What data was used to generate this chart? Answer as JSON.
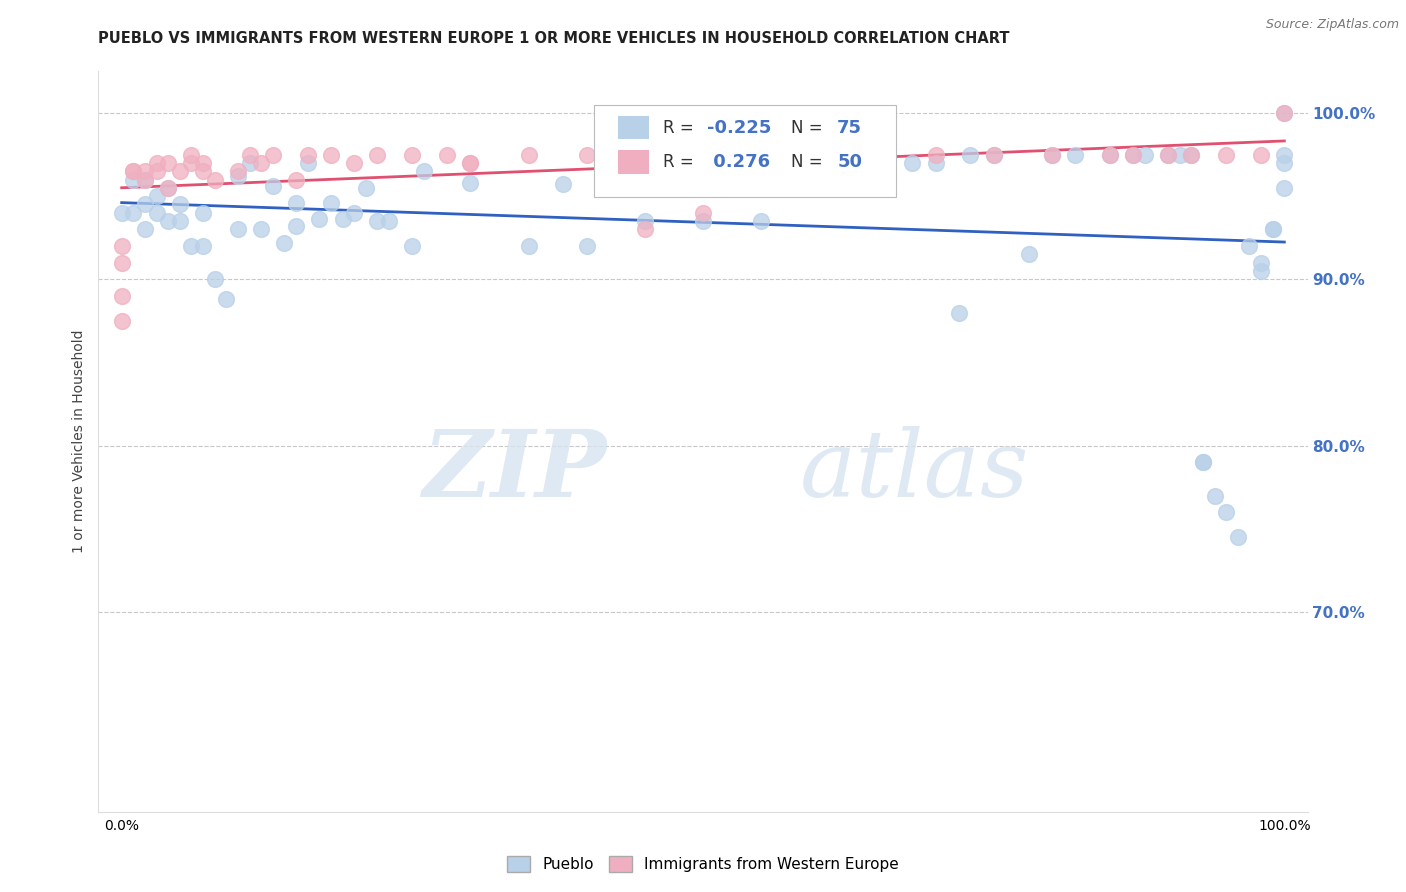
{
  "title": "PUEBLO VS IMMIGRANTS FROM WESTERN EUROPE 1 OR MORE VEHICLES IN HOUSEHOLD CORRELATION CHART",
  "source": "Source: ZipAtlas.com",
  "ylabel": "1 or more Vehicles in Household",
  "xlim": [
    -0.02,
    1.02
  ],
  "ylim": [
    0.58,
    1.025
  ],
  "ytick_vals": [
    0.7,
    0.8,
    0.9,
    1.0
  ],
  "ytick_labels": [
    "70.0%",
    "80.0%",
    "90.0%",
    "100.0%"
  ],
  "xtick_vals": [
    0.0,
    0.1,
    0.2,
    0.3,
    0.4,
    0.5,
    0.6,
    0.7,
    0.8,
    0.9,
    1.0
  ],
  "xtick_labels_sparse": [
    "0.0%",
    "",
    "",
    "",
    "",
    "",
    "",
    "",
    "",
    "",
    "100.0%"
  ],
  "r_pueblo": "-0.225",
  "n_pueblo": "75",
  "r_immigrants": "0.276",
  "n_immigrants": "50",
  "color_pueblo": "#b8d0e8",
  "color_immigrants": "#f0afc0",
  "line_color_pueblo": "#3060c0",
  "line_color_immigrants": "#e05070",
  "background_color": "#ffffff",
  "watermark_zip": "ZIP",
  "watermark_atlas": "atlas",
  "grid_color": "#c8c8c8",
  "right_label_color": "#4472c4",
  "pueblo_x": [
    0.0,
    0.01,
    0.01,
    0.02,
    0.02,
    0.02,
    0.03,
    0.03,
    0.04,
    0.04,
    0.05,
    0.05,
    0.06,
    0.07,
    0.07,
    0.08,
    0.09,
    0.1,
    0.1,
    0.11,
    0.12,
    0.13,
    0.14,
    0.15,
    0.15,
    0.16,
    0.17,
    0.18,
    0.19,
    0.2,
    0.21,
    0.22,
    0.23,
    0.25,
    0.26,
    0.3,
    0.35,
    0.38,
    0.4,
    0.42,
    0.45,
    0.5,
    0.55,
    0.6,
    0.62,
    0.63,
    0.65,
    0.68,
    0.7,
    0.72,
    0.73,
    0.75,
    0.78,
    0.8,
    0.82,
    0.85,
    0.87,
    0.88,
    0.9,
    0.91,
    0.92,
    0.93,
    0.93,
    0.94,
    0.95,
    0.96,
    0.97,
    0.98,
    0.98,
    0.99,
    0.99,
    1.0,
    1.0,
    1.0,
    1.0
  ],
  "pueblo_y": [
    0.94,
    0.96,
    0.94,
    0.96,
    0.945,
    0.93,
    0.95,
    0.94,
    0.955,
    0.935,
    0.945,
    0.935,
    0.92,
    0.94,
    0.92,
    0.9,
    0.888,
    0.962,
    0.93,
    0.97,
    0.93,
    0.956,
    0.922,
    0.932,
    0.946,
    0.97,
    0.936,
    0.946,
    0.936,
    0.94,
    0.955,
    0.935,
    0.935,
    0.92,
    0.965,
    0.958,
    0.92,
    0.957,
    0.92,
    0.98,
    0.935,
    0.935,
    0.935,
    0.965,
    0.965,
    0.975,
    0.97,
    0.97,
    0.97,
    0.88,
    0.975,
    0.975,
    0.915,
    0.975,
    0.975,
    0.975,
    0.975,
    0.975,
    0.975,
    0.975,
    0.975,
    0.79,
    0.79,
    0.77,
    0.76,
    0.745,
    0.92,
    0.905,
    0.91,
    0.93,
    0.93,
    1.0,
    0.955,
    0.975,
    0.97
  ],
  "immigrants_x": [
    0.0,
    0.0,
    0.0,
    0.0,
    0.01,
    0.01,
    0.02,
    0.02,
    0.03,
    0.03,
    0.04,
    0.04,
    0.05,
    0.06,
    0.06,
    0.07,
    0.07,
    0.08,
    0.1,
    0.11,
    0.12,
    0.13,
    0.15,
    0.16,
    0.18,
    0.2,
    0.22,
    0.25,
    0.28,
    0.3,
    0.35,
    0.4,
    0.45,
    0.5,
    0.55,
    0.6,
    0.65,
    0.65,
    0.7,
    0.75,
    0.8,
    0.85,
    0.87,
    0.9,
    0.92,
    0.95,
    0.98,
    1.0,
    0.5,
    0.3
  ],
  "immigrants_y": [
    0.92,
    0.91,
    0.89,
    0.875,
    0.965,
    0.965,
    0.96,
    0.965,
    0.97,
    0.965,
    0.955,
    0.97,
    0.965,
    0.97,
    0.975,
    0.97,
    0.965,
    0.96,
    0.965,
    0.975,
    0.97,
    0.975,
    0.96,
    0.975,
    0.975,
    0.97,
    0.975,
    0.975,
    0.975,
    0.97,
    0.975,
    0.975,
    0.93,
    0.975,
    0.975,
    0.975,
    0.975,
    0.975,
    0.975,
    0.975,
    0.975,
    0.975,
    0.975,
    0.975,
    0.975,
    0.975,
    0.975,
    1.0,
    0.94,
    0.97
  ]
}
